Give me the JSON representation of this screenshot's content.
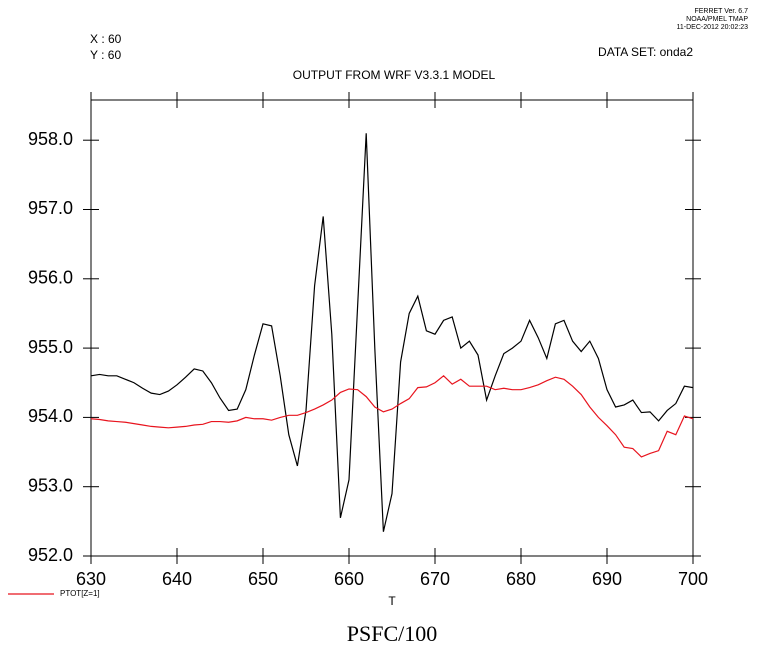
{
  "chart_data": {
    "type": "line",
    "header_lines": [
      "FERRET Ver. 6.7",
      "NOAA/PMEL TMAP",
      "11-DEC-2012 20:02:23"
    ],
    "position_lines": [
      "X : 60",
      "Y : 60"
    ],
    "dataset": "DATA SET: onda2",
    "title": "OUTPUT FROM WRF V3.3.1 MODEL",
    "xlabel": "T",
    "variable_label": "PSFC/100",
    "x": [
      630,
      631,
      632,
      633,
      634,
      635,
      636,
      637,
      638,
      639,
      640,
      641,
      642,
      643,
      644,
      645,
      646,
      647,
      648,
      649,
      650,
      651,
      652,
      653,
      654,
      655,
      656,
      657,
      658,
      659,
      660,
      661,
      662,
      663,
      664,
      665,
      666,
      667,
      668,
      669,
      670,
      671,
      672,
      673,
      674,
      675,
      676,
      677,
      678,
      679,
      680,
      681,
      682,
      683,
      684,
      685,
      686,
      687,
      688,
      689,
      690,
      691,
      692,
      693,
      694,
      695,
      696,
      697,
      698,
      699,
      700
    ],
    "series": [
      {
        "color": "#000000",
        "values": [
          954.6,
          954.62,
          954.6,
          954.6,
          954.55,
          954.5,
          954.42,
          954.35,
          954.33,
          954.38,
          954.47,
          954.58,
          954.7,
          954.67,
          954.5,
          954.28,
          954.1,
          954.12,
          954.4,
          954.9,
          955.35,
          955.32,
          954.6,
          953.75,
          953.3,
          954.1,
          955.9,
          956.9,
          955.2,
          952.55,
          953.1,
          955.6,
          958.1,
          955.0,
          952.35,
          952.9,
          954.8,
          955.5,
          955.75,
          955.25,
          955.2,
          955.4,
          955.45,
          955.0,
          955.1,
          954.9,
          954.25,
          954.6,
          954.92,
          955.0,
          955.1,
          955.4,
          955.15,
          954.85,
          955.35,
          955.4,
          955.1,
          954.95,
          955.1,
          954.85,
          954.4,
          954.15,
          954.18,
          954.25,
          954.07,
          954.08,
          953.95,
          954.1,
          954.2,
          954.45,
          954.43
        ]
      },
      {
        "name": "PTOT[Z=1]",
        "color": "#e8141e",
        "values": [
          953.98,
          953.97,
          953.95,
          953.94,
          953.93,
          953.91,
          953.89,
          953.87,
          953.86,
          953.85,
          953.86,
          953.87,
          953.89,
          953.9,
          953.94,
          953.94,
          953.93,
          953.95,
          954.0,
          953.98,
          953.98,
          953.96,
          954.0,
          954.03,
          954.03,
          954.07,
          954.12,
          954.18,
          954.25,
          954.36,
          954.41,
          954.4,
          954.3,
          954.15,
          954.08,
          954.12,
          954.2,
          954.27,
          954.43,
          954.44,
          954.5,
          954.6,
          954.48,
          954.55,
          954.45,
          954.45,
          954.45,
          954.4,
          954.42,
          954.4,
          954.4,
          954.43,
          954.47,
          954.53,
          954.58,
          954.55,
          954.45,
          954.33,
          954.15,
          954.0,
          953.88,
          953.75,
          953.57,
          953.55,
          953.43,
          953.48,
          953.52,
          953.8,
          953.75,
          954.02,
          953.98
        ]
      }
    ],
    "xlim": [
      630,
      700
    ],
    "xticks": [
      630,
      640,
      650,
      660,
      670,
      680,
      690,
      700
    ],
    "ylim": [
      952,
      958.58
    ],
    "yticks": [
      {
        "value": 952,
        "label": "952.0"
      },
      {
        "value": 953,
        "label": "953.0"
      },
      {
        "value": 954,
        "label": "954.0"
      },
      {
        "value": 955,
        "label": "955.0"
      },
      {
        "value": 956,
        "label": "956.0"
      },
      {
        "value": 957,
        "label": "957.0"
      },
      {
        "value": 958,
        "label": "958.0"
      }
    ]
  }
}
